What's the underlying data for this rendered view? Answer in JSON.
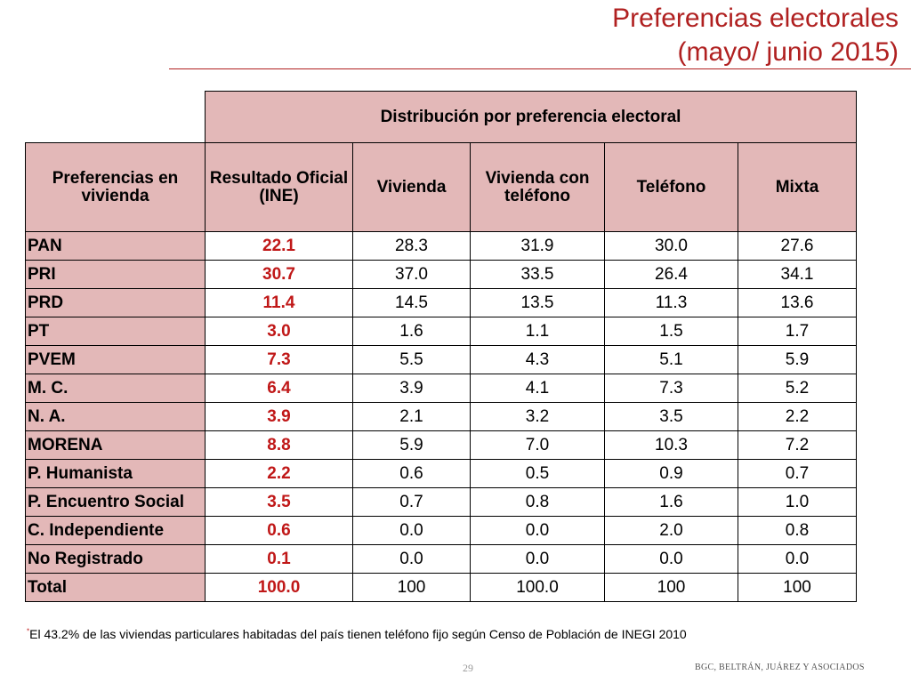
{
  "title": {
    "line1": "Preferencias electorales",
    "line2": "(mayo/ junio 2015)"
  },
  "table": {
    "group_header": "Distribución por preferencia electoral",
    "row_header": "Preferencias en vivienda",
    "columns": [
      "Resultado Oficial (INE)",
      "Vivienda",
      "Vivienda con teléfono",
      "Teléfono",
      "Mixta"
    ],
    "rows": [
      {
        "label": "PAN",
        "values": [
          "22.1",
          "28.3",
          "31.9",
          "30.0",
          "27.6"
        ]
      },
      {
        "label": "PRI",
        "values": [
          "30.7",
          "37.0",
          "33.5",
          "26.4",
          "34.1"
        ]
      },
      {
        "label": "PRD",
        "values": [
          "11.4",
          "14.5",
          "13.5",
          "11.3",
          "13.6"
        ]
      },
      {
        "label": "PT",
        "values": [
          "3.0",
          "1.6",
          "1.1",
          "1.5",
          "1.7"
        ]
      },
      {
        "label": "PVEM",
        "values": [
          "7.3",
          "5.5",
          "4.3",
          "5.1",
          "5.9"
        ]
      },
      {
        "label": "M. C.",
        "values": [
          "6.4",
          "3.9",
          "4.1",
          "7.3",
          "5.2"
        ]
      },
      {
        "label": "N. A.",
        "values": [
          "3.9",
          "2.1",
          "3.2",
          "3.5",
          "2.2"
        ]
      },
      {
        "label": "MORENA",
        "values": [
          "8.8",
          "5.9",
          "7.0",
          "10.3",
          "7.2"
        ]
      },
      {
        "label": "P. Humanista",
        "values": [
          "2.2",
          "0.6",
          "0.5",
          "0.9",
          "0.7"
        ]
      },
      {
        "label": "P. Encuentro Social",
        "values": [
          "3.5",
          "0.7",
          "0.8",
          "1.6",
          "1.0"
        ]
      },
      {
        "label": "C. Independiente",
        "values": [
          "0.6",
          "0.0",
          "0.0",
          "2.0",
          "0.8"
        ]
      },
      {
        "label": "No Registrado",
        "values": [
          "0.1",
          "0.0",
          "0.0",
          "0.0",
          "0.0"
        ]
      },
      {
        "label": "Total",
        "values": [
          "100.0",
          "100",
          "100.0",
          "100",
          "100"
        ]
      }
    ]
  },
  "footnote": {
    "marker": "*",
    "text": "El 43.2% de las viviendas particulares habitadas del país tienen teléfono fijo según Censo de Población de INEGI 2010"
  },
  "page_number": "29",
  "brand": "BGC, BELTRÁN, JUÁREZ Y ASOCIADOS",
  "colors": {
    "accent": "#b02020",
    "header_fill": "#e3b8b8",
    "official_value": "#c01818"
  }
}
